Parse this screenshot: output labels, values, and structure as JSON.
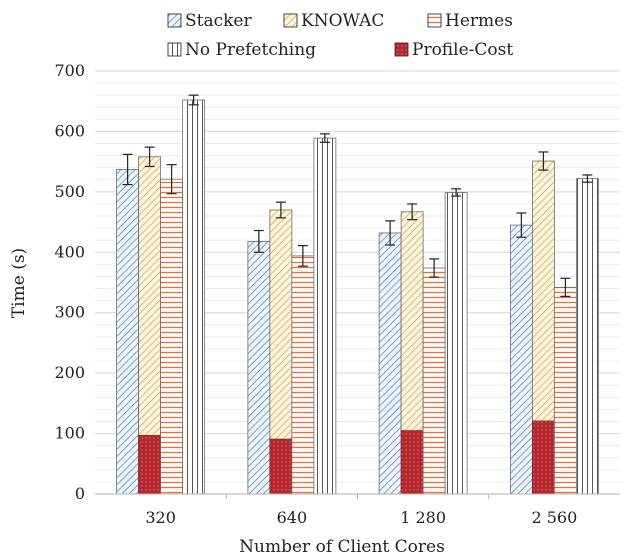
{
  "chart_data": {
    "type": "bar",
    "categories": [
      "320",
      "640",
      "1 280",
      "2 560"
    ],
    "xlabel": "Number of Client Cores",
    "ylabel": "Time (s)",
    "ylim": [
      0,
      700
    ],
    "yticks": [
      0,
      100,
      200,
      300,
      400,
      500,
      600,
      700
    ],
    "grid": "horizontal",
    "legend_position": "top",
    "series": [
      {
        "name": "Stacker",
        "values": [
          537,
          418,
          432,
          445
        ],
        "errors": [
          25,
          18,
          20,
          20
        ],
        "color": "#5b8ec9",
        "pattern": "diagonal-hatch"
      },
      {
        "name": "KNOWAC",
        "values": [
          558,
          470,
          467,
          551
        ],
        "errors": [
          16,
          13,
          13,
          15
        ],
        "color": "#e8b44a",
        "pattern": "diagonal-hatch"
      },
      {
        "name": "Hermes",
        "values": [
          521,
          394,
          374,
          342
        ],
        "errors": [
          24,
          17,
          15,
          15
        ],
        "color": "#e9703e",
        "pattern": "horizontal-lines"
      },
      {
        "name": "No Prefetching",
        "values": [
          652,
          589,
          499,
          522
        ],
        "errors": [
          8,
          7,
          6,
          6
        ],
        "color": "#555555",
        "pattern": "vertical-lines"
      }
    ],
    "overlay": {
      "name": "Profile-Cost",
      "on_series": "KNOWAC",
      "values": [
        97,
        91,
        105,
        121
      ],
      "color": "#b5262e"
    }
  }
}
